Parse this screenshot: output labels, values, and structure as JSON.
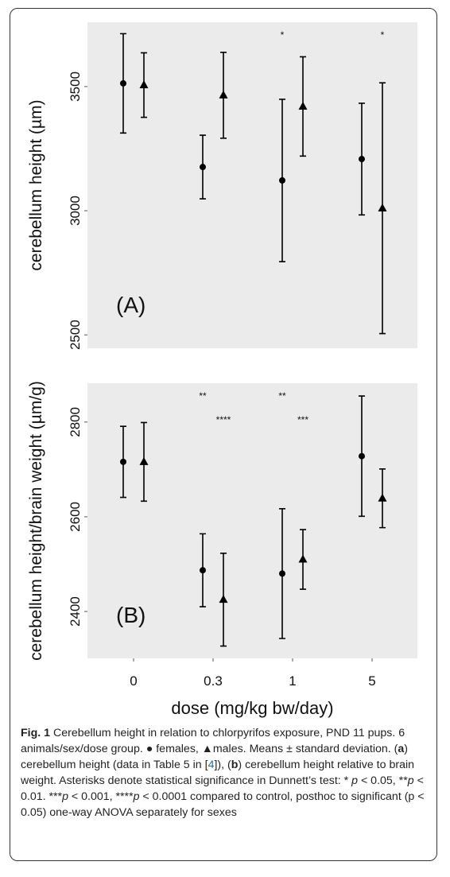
{
  "chart_data": {
    "type": "errorbar",
    "categories": [
      "0",
      "0.3",
      "1",
      "5"
    ],
    "xlabel": "dose (mg/kg bw/day)",
    "panels": [
      {
        "panel_label": "(A)",
        "ylabel": "cerebellum height (µm)",
        "ylim": [
          2446,
          3759
        ],
        "yticks": [
          2500,
          3000,
          3500
        ],
        "series": [
          {
            "marker": "circle",
            "values": [
              3513,
              3176,
              3122,
              3208
            ],
            "errors": [
              200,
              128,
              327,
              225
            ],
            "annotations": [
              null,
              null,
              "*",
              null
            ]
          },
          {
            "marker": "triangle",
            "values": [
              3506,
              3465,
              3420,
              3010
            ],
            "errors": [
              130,
              173,
              200,
              505
            ],
            "annotations": [
              null,
              null,
              null,
              "*"
            ]
          }
        ]
      },
      {
        "panel_label": "(B)",
        "ylabel": "cerebellum height/brain weight (µm/g)",
        "ylim": [
          2301,
          2882
        ],
        "yticks": [
          2400,
          2600,
          2800
        ],
        "series": [
          {
            "marker": "circle",
            "values": [
              2716,
              2487,
              2480,
              2728
            ],
            "errors": [
              75,
              77,
              137,
              127
            ],
            "annotations": [
              null,
              "**",
              "**",
              null
            ]
          },
          {
            "marker": "triangle",
            "values": [
              2716,
              2425,
              2510,
              2639
            ],
            "errors": [
              83,
              98,
              63,
              62
            ],
            "annotations": [
              null,
              "****",
              "***",
              null
            ]
          }
        ]
      }
    ]
  },
  "caption": {
    "runs": [
      "Fig. 1",
      " Cerebellum height in relation to chlorpyrifos exposure, PND 11 pups. 6 animals/sex/dose group. ● females, ▲males. Means ± standard deviation. (",
      "a",
      ") cerebellum height (data in Table 5 in [",
      "4",
      "]), (",
      "b",
      ") cerebellum height relative to brain weight. Asterisks denote statistical significance in Dunnett’s test: * ",
      "p",
      " < 0.05, **",
      "p",
      " < 0.01. ***",
      "p",
      " < 0.001, ****",
      "p",
      " < 0.0001 compared to control, posthoc to significant (p < 0.05) one-way ANOVA separately for sexes"
    ]
  }
}
